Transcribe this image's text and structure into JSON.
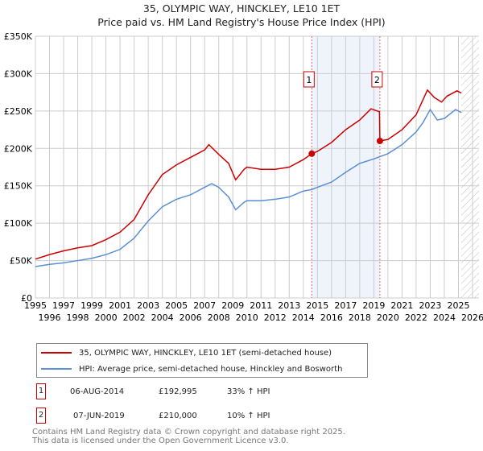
{
  "title": "35, OLYMPIC WAY, HINCKLEY, LE10 1ET",
  "subtitle": "Price paid vs. HM Land Registry's House Price Index (HPI)",
  "chart_data": {
    "type": "line",
    "ylim": [
      0,
      350000
    ],
    "xlim": [
      1995,
      2026
    ],
    "yticks": [
      0,
      50000,
      100000,
      150000,
      200000,
      250000,
      300000,
      350000
    ],
    "ytick_labels": [
      "£0",
      "£50K",
      "£100K",
      "£150K",
      "£200K",
      "£250K",
      "£300K",
      "£350K"
    ],
    "xticks": [
      1995,
      1996,
      1997,
      1998,
      1999,
      2000,
      2001,
      2002,
      2003,
      2004,
      2005,
      2006,
      2007,
      2008,
      2009,
      2010,
      2011,
      2012,
      2013,
      2014,
      2015,
      2016,
      2017,
      2018,
      2019,
      2020,
      2021,
      2022,
      2023,
      2024,
      2025,
      2026
    ],
    "grid": true,
    "shaded_range": [
      2014.6,
      2019.43
    ],
    "hatched_from": 2025.2,
    "series": [
      {
        "name": "35, OLYMPIC WAY, HINCKLEY, LE10 1ET (semi-detached house)",
        "color": "#cc0000",
        "x": [
          1995,
          1996,
          1997,
          1998,
          1999,
          2000,
          2001,
          2002,
          2003,
          2004,
          2005,
          2006,
          2007,
          2007.3,
          2008,
          2008.7,
          2009.2,
          2009.8,
          2010,
          2011,
          2012,
          2013,
          2014,
          2014.6,
          2015,
          2016,
          2017,
          2018,
          2018.8,
          2019.4,
          2019.43,
          2020,
          2021,
          2022,
          2022.8,
          2023.3,
          2023.8,
          2024.2,
          2024.9,
          2025.2
        ],
        "y": [
          52000,
          58000,
          63000,
          67000,
          70000,
          78000,
          88000,
          105000,
          138000,
          165000,
          178000,
          188000,
          198000,
          205000,
          192000,
          180000,
          158000,
          172000,
          175000,
          172000,
          172000,
          175000,
          185000,
          192995,
          196000,
          208000,
          225000,
          238000,
          253000,
          249000,
          210000,
          212000,
          225000,
          245000,
          278000,
          268000,
          262000,
          270000,
          277000,
          274000
        ]
      },
      {
        "name": "HPI: Average price, semi-detached house, Hinckley and Bosworth",
        "color": "#5b8fd4",
        "x": [
          1995,
          1996,
          1997,
          1998,
          1999,
          2000,
          2001,
          2002,
          2003,
          2004,
          2005,
          2006,
          2007,
          2007.5,
          2008,
          2008.7,
          2009.2,
          2009.8,
          2010,
          2011,
          2012,
          2013,
          2014,
          2014.6,
          2015,
          2016,
          2017,
          2018,
          2019,
          2020,
          2021,
          2022,
          2022.5,
          2023,
          2023.5,
          2024,
          2024.8,
          2025.2
        ],
        "y": [
          42000,
          45000,
          47000,
          50000,
          53000,
          58000,
          65000,
          80000,
          103000,
          122000,
          132000,
          138000,
          148000,
          153000,
          148000,
          135000,
          118000,
          128000,
          130000,
          130000,
          132000,
          135000,
          143000,
          145000,
          148000,
          155000,
          168000,
          180000,
          186000,
          193000,
          205000,
          222000,
          235000,
          252000,
          238000,
          240000,
          252000,
          248000
        ]
      }
    ],
    "sales": [
      {
        "label": "1",
        "x": 2014.6,
        "price": 192995,
        "date": "06-AUG-2014",
        "price_text": "£192,995",
        "hpi_text": "33% ↑ HPI"
      },
      {
        "label": "2",
        "x": 2019.43,
        "price": 210000,
        "date": "07-JUN-2019",
        "price_text": "£210,000",
        "hpi_text": "10% ↑ HPI"
      }
    ]
  },
  "legend": {
    "red": "35, OLYMPIC WAY, HINCKLEY, LE10 1ET (semi-detached house)",
    "blue": "HPI: Average price, semi-detached house, Hinckley and Bosworth"
  },
  "footer": {
    "line1": "Contains HM Land Registry data © Crown copyright and database right 2025.",
    "line2": "This data is licensed under the Open Government Licence v3.0."
  }
}
